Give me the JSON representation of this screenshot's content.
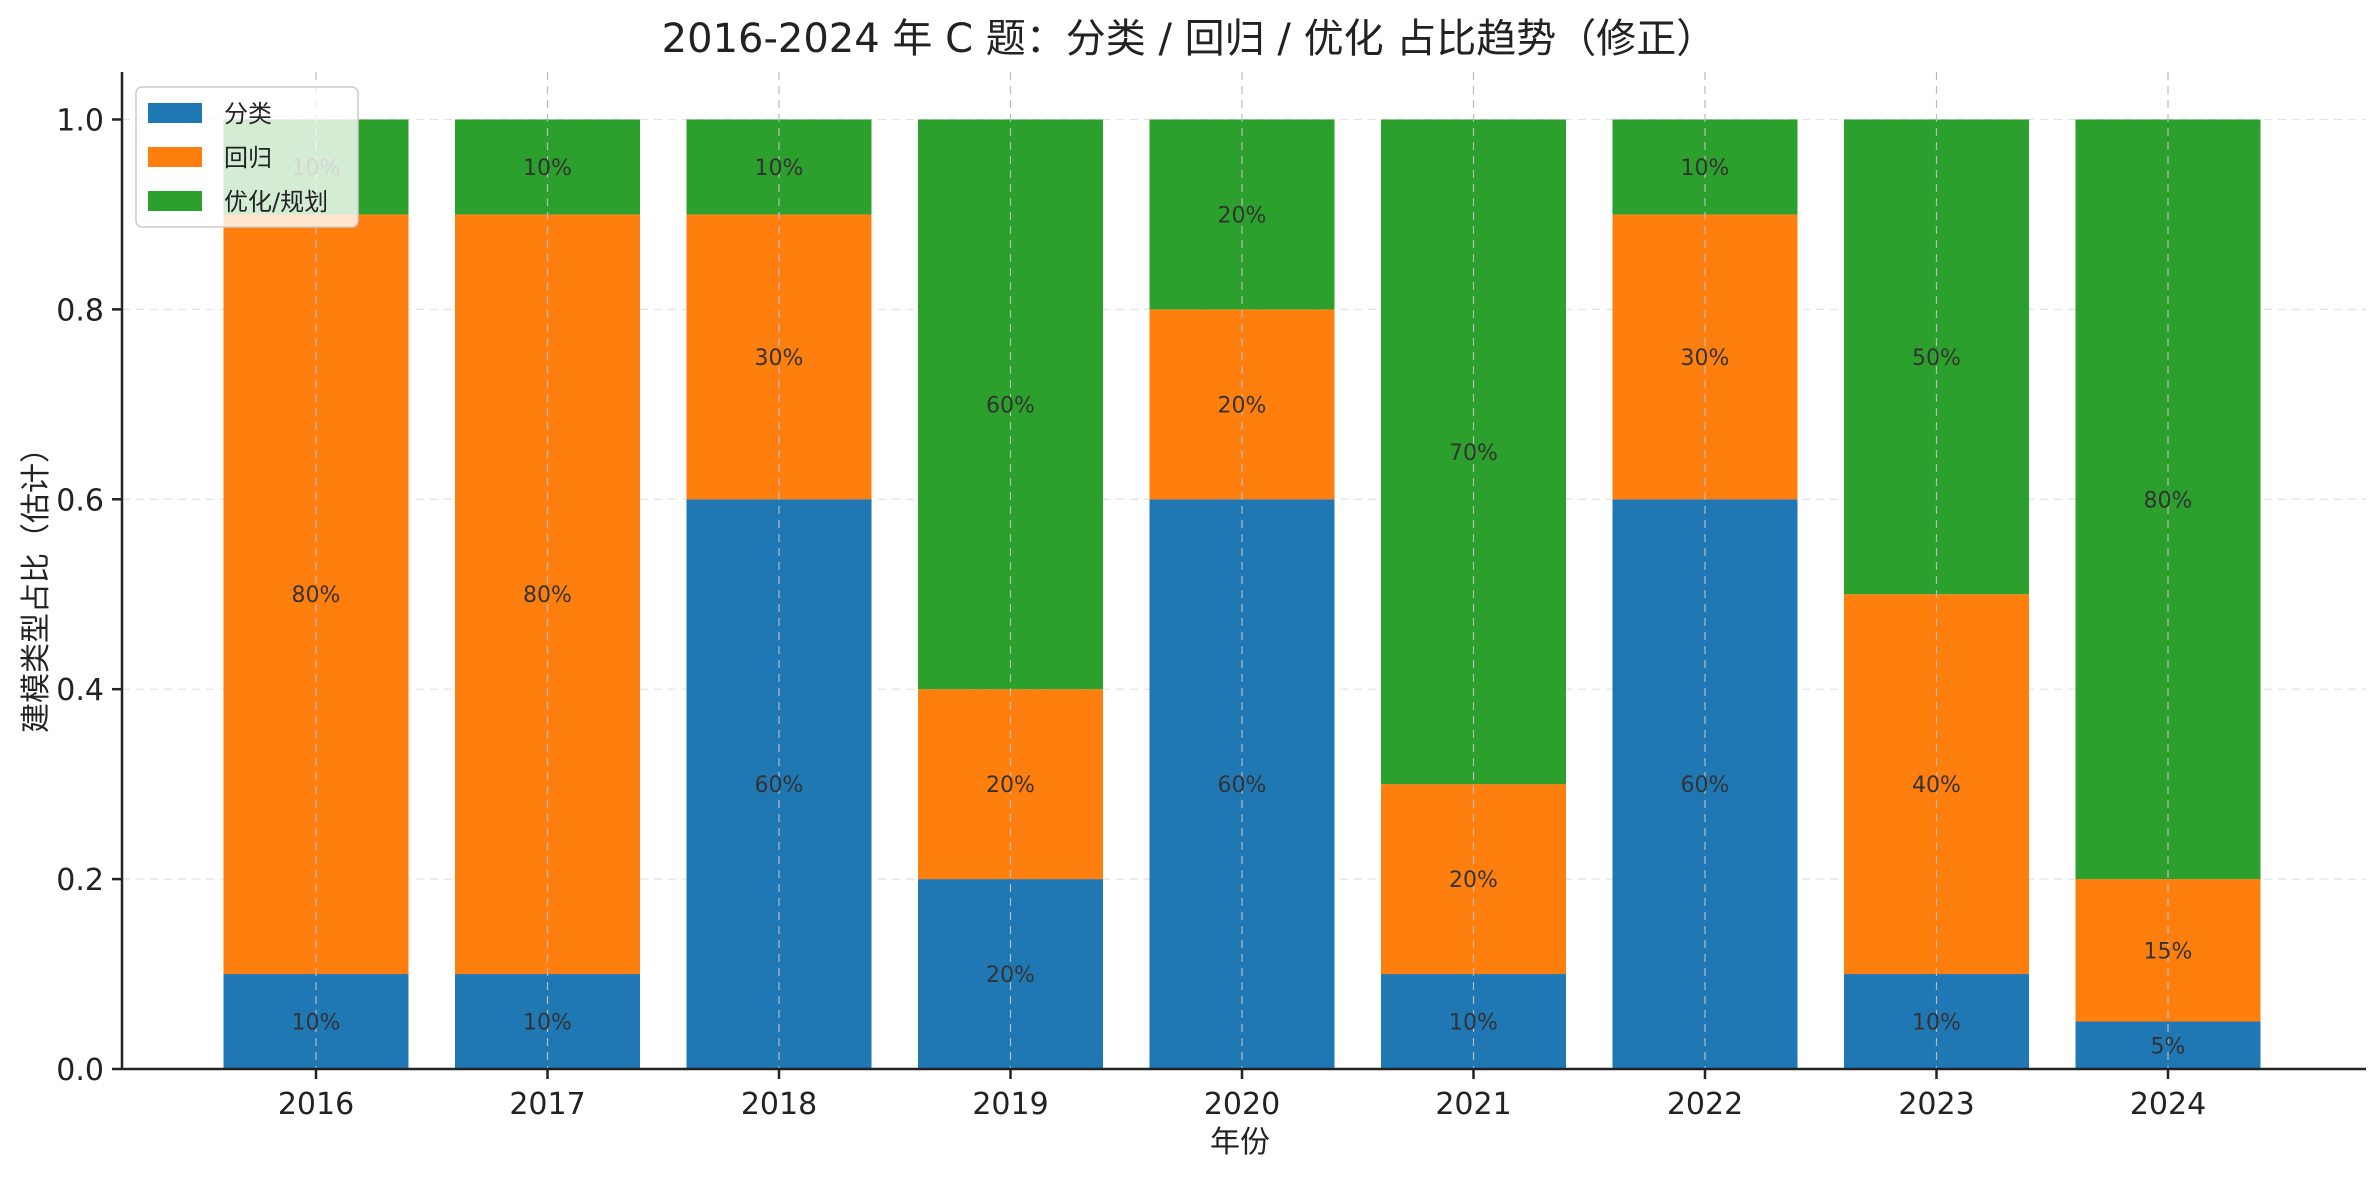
{
  "chart_data": {
    "type": "bar",
    "stacked": true,
    "title": "2016-2024 年 C 题：分类 / 回归 / 优化 占比趋势（修正）",
    "xlabel": "年份",
    "ylabel": "建模类型占比（估计）",
    "ylim": [
      0,
      1.05
    ],
    "yticks": [
      0.0,
      0.2,
      0.4,
      0.6,
      0.8,
      1.0
    ],
    "ytick_labels": [
      "0.0",
      "0.2",
      "0.4",
      "0.6",
      "0.8",
      "1.0"
    ],
    "categories": [
      "2016",
      "2017",
      "2018",
      "2019",
      "2020",
      "2021",
      "2022",
      "2023",
      "2024"
    ],
    "series": [
      {
        "name": "分类",
        "color": "#1f77b4",
        "values": [
          0.1,
          0.1,
          0.6,
          0.2,
          0.6,
          0.1,
          0.6,
          0.1,
          0.05
        ],
        "labels": [
          "10%",
          "10%",
          "60%",
          "20%",
          "60%",
          "10%",
          "60%",
          "10%",
          "5%"
        ]
      },
      {
        "name": "回归",
        "color": "#ff7f0e",
        "values": [
          0.8,
          0.8,
          0.3,
          0.2,
          0.2,
          0.2,
          0.3,
          0.4,
          0.15
        ],
        "labels": [
          "80%",
          "80%",
          "30%",
          "20%",
          "20%",
          "20%",
          "30%",
          "40%",
          "15%"
        ]
      },
      {
        "name": "优化/规划",
        "color": "#2ca02c",
        "values": [
          0.1,
          0.1,
          0.1,
          0.6,
          0.2,
          0.7,
          0.1,
          0.5,
          0.8
        ],
        "labels": [
          "10%",
          "10%",
          "10%",
          "60%",
          "20%",
          "70%",
          "10%",
          "50%",
          "80%"
        ]
      }
    ],
    "grid": true,
    "legend_position": "top-left"
  }
}
